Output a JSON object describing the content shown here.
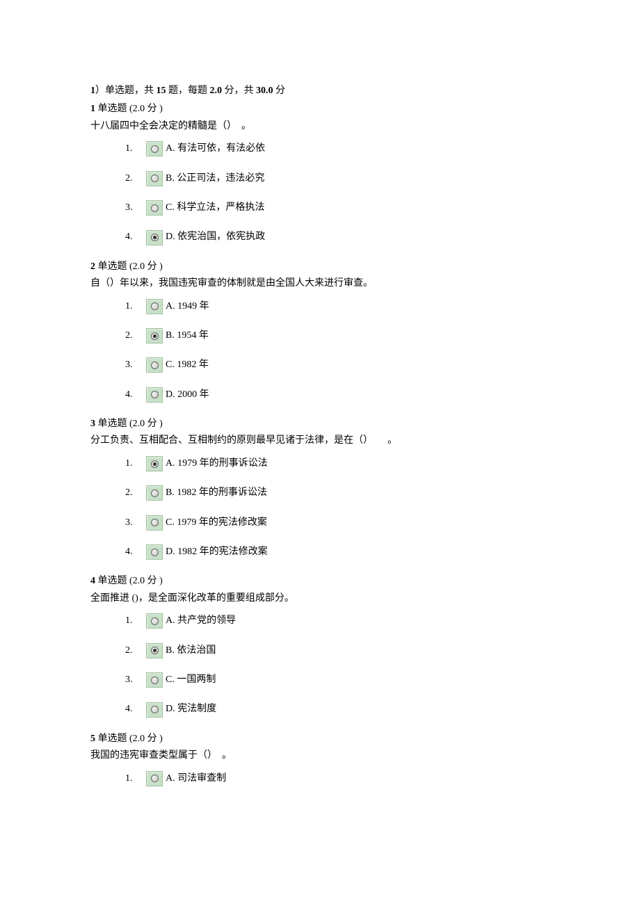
{
  "colors": {
    "background": "#ffffff",
    "text": "#000000",
    "radio_bg": "#c7e0c8",
    "radio_border": "#a0c0a0",
    "radio_inner_border": "#666666",
    "radio_dot": "#333333"
  },
  "typography": {
    "font_family": "SimSun",
    "base_fontsize": 14,
    "bold_weight": "bold"
  },
  "section": {
    "prefix": "1",
    "type_label": "）单选题，共",
    "count": "15",
    "count_suffix": "题，每题",
    "points_each": "2.0",
    "points_each_suffix": "分，共",
    "total": "30.0",
    "total_suffix": "分"
  },
  "questions": [
    {
      "num": "1",
      "type_label": "单选题",
      "points": "(2.0",
      "points_suffix": "分 )",
      "text": "十八届四中全会决定的精髓是（）　。",
      "options": [
        {
          "num": "1.",
          "letter": "A.",
          "text": "有法可依，有法必依",
          "selected": false
        },
        {
          "num": "2.",
          "letter": "B.",
          "text": "公正司法，违法必究",
          "selected": false
        },
        {
          "num": "3.",
          "letter": "C.",
          "text": "科学立法，严格执法",
          "selected": false
        },
        {
          "num": "4.",
          "letter": "D.",
          "text": "依宪治国，依宪执政",
          "selected": true
        }
      ]
    },
    {
      "num": "2",
      "type_label": "单选题",
      "points": "(2.0",
      "points_suffix": "分 )",
      "text": "自（）年以来，我国违宪审查的体制就是由全国人大来进行审查。",
      "options": [
        {
          "num": "1.",
          "letter": "A.",
          "text": "1949 年",
          "selected": false
        },
        {
          "num": "2.",
          "letter": "B.",
          "text": "1954 年",
          "selected": true
        },
        {
          "num": "3.",
          "letter": "C.",
          "text": "1982 年",
          "selected": false
        },
        {
          "num": "4.",
          "letter": "D.",
          "text": "2000 年",
          "selected": false
        }
      ]
    },
    {
      "num": "3",
      "type_label": "单选题",
      "points": "(2.0",
      "points_suffix": "分 )",
      "text": "分工负责、互相配合、互相制约的原则最早见诸于法律，是在（）　　。",
      "options": [
        {
          "num": "1.",
          "letter": "A.",
          "text": "1979 年的刑事诉讼法",
          "selected": true
        },
        {
          "num": "2.",
          "letter": "B.",
          "text": "1982 年的刑事诉讼法",
          "selected": false
        },
        {
          "num": "3.",
          "letter": "C.",
          "text": "1979 年的宪法修改案",
          "selected": false
        },
        {
          "num": "4.",
          "letter": "D.",
          "text": "1982 年的宪法修改案",
          "selected": false
        }
      ]
    },
    {
      "num": "4",
      "type_label": "单选题",
      "points": "(2.0",
      "points_suffix": "分 )",
      "text": "全面推进 ()，是全面深化改革的重要组成部分。",
      "options": [
        {
          "num": "1.",
          "letter": "A.",
          "text": "共产党的领导",
          "selected": false
        },
        {
          "num": "2.",
          "letter": "B.",
          "text": "依法治国",
          "selected": true
        },
        {
          "num": "3.",
          "letter": "C.",
          "text": "一国两制",
          "selected": false
        },
        {
          "num": "4.",
          "letter": "D.",
          "text": "宪法制度",
          "selected": false
        }
      ]
    },
    {
      "num": "5",
      "type_label": "单选题",
      "points": "(2.0",
      "points_suffix": "分 )",
      "text": "我国的违宪审查类型属于（）　。",
      "options": [
        {
          "num": "1.",
          "letter": "A.",
          "text": "司法审查制",
          "selected": false
        }
      ]
    }
  ]
}
